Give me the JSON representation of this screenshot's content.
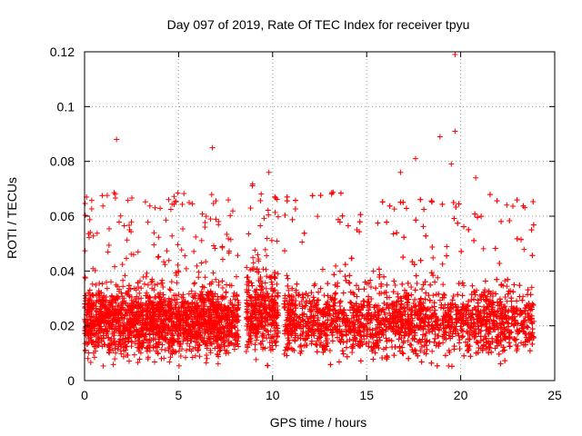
{
  "chart_data": {
    "type": "scatter",
    "title": "Day 097 of 2019, Rate Of TEC Index for receiver tpyu",
    "xlabel": "GPS time / hours",
    "ylabel": "ROTI / TECUs",
    "xlim": [
      0,
      25
    ],
    "ylim": [
      0,
      0.12
    ],
    "x_ticks": [
      0,
      5,
      10,
      15,
      20,
      25
    ],
    "x_tick_labels": [
      "0",
      "5",
      "10",
      "15",
      "20",
      "25"
    ],
    "y_ticks": [
      0,
      0.02,
      0.04,
      0.06,
      0.08,
      0.1,
      0.12
    ],
    "y_tick_labels": [
      "0",
      "0.02",
      "0.04",
      "0.06",
      "0.08",
      "0.1",
      "0.12"
    ],
    "grid": true,
    "marker": "+",
    "color": "#ff0000",
    "notable_points": [
      {
        "x": 1.7,
        "y": 0.088
      },
      {
        "x": 6.8,
        "y": 0.085
      },
      {
        "x": 9.8,
        "y": 0.076
      },
      {
        "x": 16.8,
        "y": 0.076
      },
      {
        "x": 17.6,
        "y": 0.081
      },
      {
        "x": 18.9,
        "y": 0.089
      },
      {
        "x": 19.7,
        "y": 0.091
      },
      {
        "x": 19.7,
        "y": 0.119
      },
      {
        "x": 19.5,
        "y": 0.079
      },
      {
        "x": 20.8,
        "y": 0.074
      }
    ],
    "segments": [
      {
        "x_start": 0.0,
        "x_end": 8.2,
        "median": 0.022,
        "spread": 0.006
      },
      {
        "x_start": 8.6,
        "x_end": 10.3,
        "median": 0.025,
        "spread": 0.007
      },
      {
        "x_start": 10.6,
        "x_end": 23.9,
        "median": 0.022,
        "spread": 0.006
      }
    ]
  }
}
